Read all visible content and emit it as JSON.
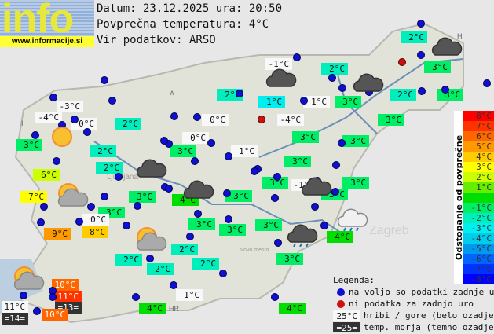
{
  "logo": {
    "word": "info",
    "url": "www.informacije.si"
  },
  "header": {
    "date_line": "Datum: 23.12.2025 ura: 20:50",
    "avg_line": "Povprečna temperatura: 4°C",
    "source_line": "Vir podatkov: ARSO"
  },
  "map_labels": [
    "A",
    "I",
    "HR",
    "H",
    "Ljubljana",
    "Zagreb",
    "Novo mesto"
  ],
  "colors": {
    "station_dot": "#1010d0",
    "no_data_dot": "#d01010",
    "mountain_bg": "#f8f8f8",
    "sea_bg": "#333333"
  },
  "stations": [
    {
      "t": "2°C",
      "c": "-2"
    },
    {
      "t": "-1°C",
      "c": "w"
    },
    {
      "t": "2°C",
      "c": "-2"
    },
    {
      "t": "3°C",
      "c": "-1"
    },
    {
      "t": "2°C",
      "c": "-2"
    },
    {
      "t": "1°C",
      "c": "-3"
    },
    {
      "t": "1°C",
      "c": "w"
    },
    {
      "t": "3°C",
      "c": "-1"
    },
    {
      "t": "2°C",
      "c": "-2"
    },
    {
      "t": "3°C",
      "c": "-1"
    },
    {
      "t": "-3°C",
      "c": "w"
    },
    {
      "t": "-4°C",
      "c": "w"
    },
    {
      "t": "0°C",
      "c": "w"
    },
    {
      "t": "2°C",
      "c": "-2"
    },
    {
      "t": "0°C",
      "c": "w"
    },
    {
      "t": "-4°C",
      "c": "w"
    },
    {
      "t": "3°C",
      "c": "-1"
    },
    {
      "t": "3°C",
      "c": "-1"
    },
    {
      "t": "0°C",
      "c": "w"
    },
    {
      "t": "3°C",
      "c": "-1"
    },
    {
      "t": "3°C",
      "c": "-1"
    },
    {
      "t": "2°C",
      "c": "-2"
    },
    {
      "t": "3°C",
      "c": "-1"
    },
    {
      "t": "1°C",
      "c": "w"
    },
    {
      "t": "3°C",
      "c": "-1"
    },
    {
      "t": "2°C",
      "c": "-2"
    },
    {
      "t": "6°C",
      "c": "2"
    },
    {
      "t": "3°C",
      "c": "-1"
    },
    {
      "t": "-1°C",
      "c": "w"
    },
    {
      "t": "3°C",
      "c": "-1"
    },
    {
      "t": "7°C",
      "c": "3"
    },
    {
      "t": "3°C",
      "c": "-1"
    },
    {
      "t": "4°C",
      "c": "0"
    },
    {
      "t": "3°C",
      "c": "-1"
    },
    {
      "t": "3°C",
      "c": "-1"
    },
    {
      "t": "3°C",
      "c": "-1"
    },
    {
      "t": "0°C",
      "c": "w"
    },
    {
      "t": "9°C",
      "c": "5"
    },
    {
      "t": "8°C",
      "c": "4"
    },
    {
      "t": "3°C",
      "c": "-1"
    },
    {
      "t": "3°C",
      "c": "-1"
    },
    {
      "t": "3°C",
      "c": "-1"
    },
    {
      "t": "4°C",
      "c": "0"
    },
    {
      "t": "2°C",
      "c": "-2"
    },
    {
      "t": "2°C",
      "c": "-2"
    },
    {
      "t": "2°C",
      "c": "-2"
    },
    {
      "t": "2°C",
      "c": "-2"
    },
    {
      "t": "3°C",
      "c": "-1"
    },
    {
      "t": "10°C",
      "c": "6"
    },
    {
      "t": "11°C",
      "c": "7"
    },
    {
      "t": "=13=",
      "c": "sea"
    },
    {
      "t": "11°C",
      "c": "w"
    },
    {
      "t": "=14=",
      "c": "sea"
    },
    {
      "t": "10°C",
      "c": "6"
    },
    {
      "t": "1°C",
      "c": "w"
    },
    {
      "t": "4°C",
      "c": "0"
    },
    {
      "t": "4°C",
      "c": "0"
    }
  ],
  "scale": {
    "title": "Odstopanje od povprečne temperature:",
    "steps": [
      {
        "label": "8°C",
        "color": "#ff0000"
      },
      {
        "label": "7°C",
        "color": "#ff3300"
      },
      {
        "label": "6°C",
        "color": "#ff6600"
      },
      {
        "label": "5°C",
        "color": "#ff9900"
      },
      {
        "label": "4°C",
        "color": "#ffcc00"
      },
      {
        "label": "3°C",
        "color": "#ffff00"
      },
      {
        "label": "2°C",
        "color": "#ccff00"
      },
      {
        "label": "1°C",
        "color": "#66ee00"
      },
      {
        "label": "",
        "color": "#00dd00"
      },
      {
        "label": "-1°C",
        "color": "#00ee66"
      },
      {
        "label": "-2°C",
        "color": "#00eebb"
      },
      {
        "label": "-3°C",
        "color": "#00eeee"
      },
      {
        "label": "-4°C",
        "color": "#00ccee"
      },
      {
        "label": "-5°C",
        "color": "#0099ee"
      },
      {
        "label": "-6°C",
        "color": "#0066ff"
      },
      {
        "label": "-7°C",
        "color": "#0033ff"
      },
      {
        "label": "-8°C",
        "color": "#0000ff"
      }
    ]
  },
  "legend": {
    "title": "Legenda:",
    "blue": "na voljo so podatki zadnje ure",
    "red": "ni podatka za zadnjo uro",
    "mountain_sample": "25°C",
    "mountain_text": "hribi / gore (belo ozadje)",
    "sea_sample": "=25=",
    "sea_text": "temp. morja (temno ozadje)"
  }
}
